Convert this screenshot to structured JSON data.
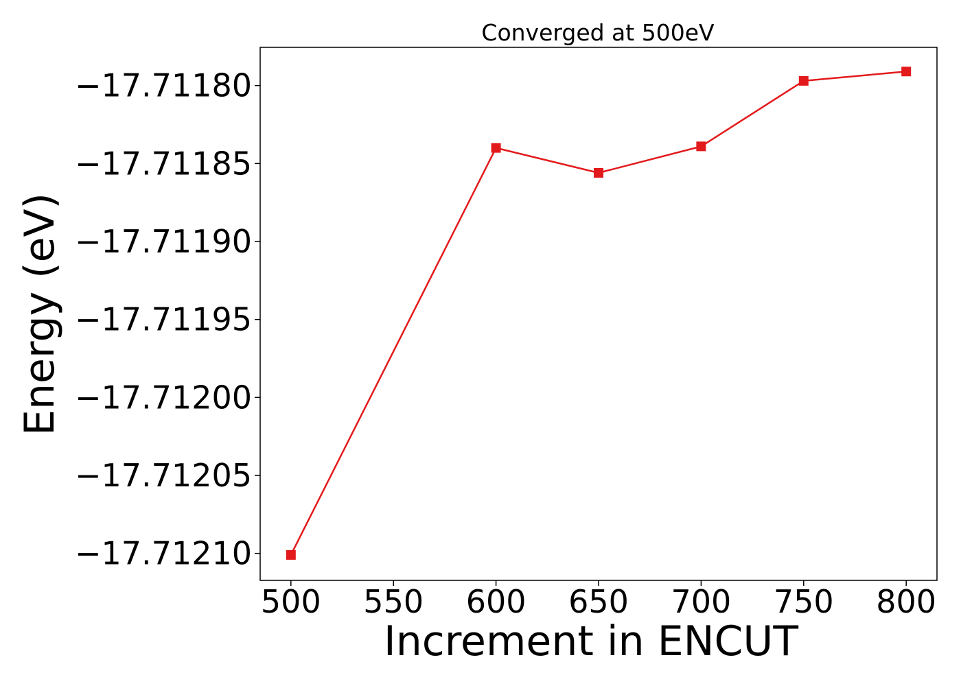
{
  "chart_data": {
    "type": "line",
    "title": "Converged at 500eV",
    "xlabel": "Increment in ENCUT",
    "ylabel": "Energy (eV)",
    "x": [
      500,
      600,
      650,
      700,
      750,
      800
    ],
    "series": [
      {
        "values": [
          -17.712101,
          -17.71184,
          -17.711856,
          -17.711839,
          -17.711797,
          -17.711791
        ],
        "color": "#e31a1c",
        "marker": "square"
      }
    ],
    "x_ticks": [
      500,
      550,
      600,
      650,
      700,
      750,
      800
    ],
    "x_tick_labels": [
      "500",
      "550",
      "600",
      "650",
      "700",
      "750",
      "800"
    ],
    "y_ticks": [
      -17.7118,
      -17.71185,
      -17.7119,
      -17.71195,
      -17.712,
      -17.71205,
      -17.7121
    ],
    "y_tick_labels": [
      "−17.71180",
      "−17.71185",
      "−17.71190",
      "−17.71195",
      "−17.71200",
      "−17.71205",
      "−17.71210"
    ],
    "xlim": [
      485,
      815
    ],
    "ylim": [
      -17.7121173,
      -17.7117755
    ],
    "grid": false,
    "legend": "none"
  }
}
